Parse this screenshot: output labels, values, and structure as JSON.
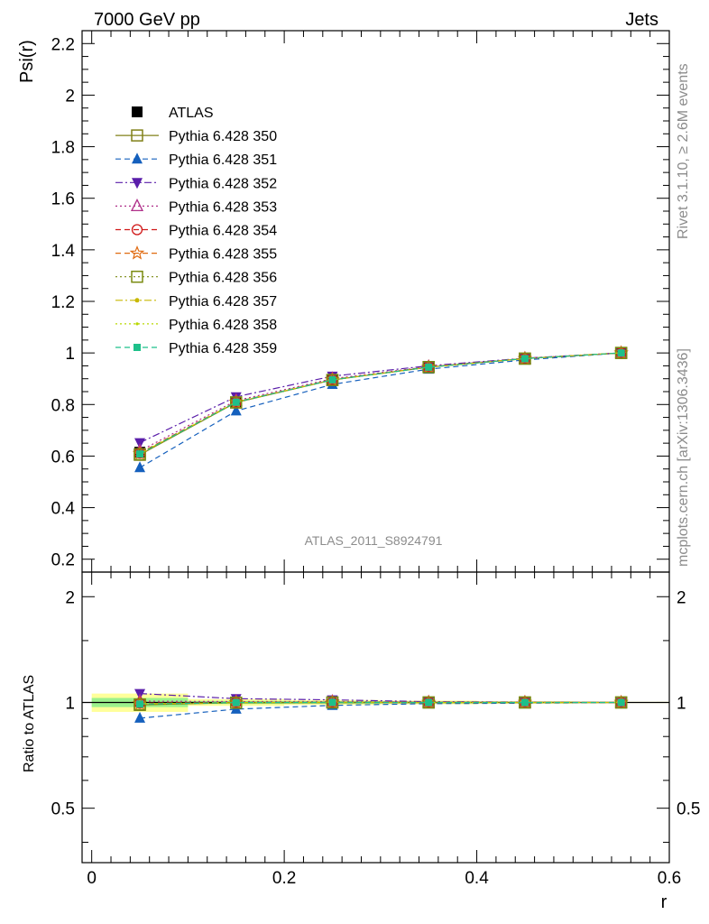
{
  "header": {
    "left": "7000 GeV pp",
    "right": "Jets"
  },
  "side_labels": {
    "rivet": "Rivet 3.1.10, ≥ 2.6M events",
    "mcplots": "mcplots.cern.ch [arXiv:1306.3436]"
  },
  "analysis_id": "ATLAS_2011_S8924791",
  "chart_data": [
    {
      "type": "line",
      "panel": "main",
      "xlabel": "r",
      "ylabel": "Psi(r)",
      "xlim": [
        -0.01,
        0.6
      ],
      "ylim": [
        0.15,
        2.25
      ],
      "x_ticks": [
        0,
        0.2,
        0.4,
        0.6
      ],
      "y_ticks": [
        0.2,
        0.4,
        0.6,
        0.8,
        1,
        1.2,
        1.4,
        1.6,
        1.8,
        2,
        2.2
      ],
      "x": [
        0.05,
        0.15,
        0.25,
        0.35,
        0.45,
        0.55
      ],
      "legend_position": "top-left",
      "series": [
        {
          "name": "ATLAS",
          "color": "#000000",
          "marker": "square-filled",
          "line": "none",
          "values": [
            0.615,
            0.81,
            0.895,
            0.945,
            0.978,
            1.0
          ]
        },
        {
          "name": "Pythia 6.428 350",
          "color": "#808018",
          "marker": "square-open",
          "line": "solid",
          "values": [
            0.605,
            0.808,
            0.895,
            0.945,
            0.978,
            1.0
          ]
        },
        {
          "name": "Pythia 6.428 351",
          "color": "#1560bd",
          "marker": "triangle-up-filled",
          "line": "dashed",
          "values": [
            0.555,
            0.775,
            0.878,
            0.937,
            0.973,
            1.0
          ]
        },
        {
          "name": "Pythia 6.428 352",
          "color": "#5a1eaa",
          "marker": "triangle-down-filled",
          "line": "dashdot",
          "values": [
            0.652,
            0.83,
            0.91,
            0.95,
            0.98,
            1.0
          ]
        },
        {
          "name": "Pythia 6.428 353",
          "color": "#b0308a",
          "marker": "triangle-up-open",
          "line": "dotted",
          "values": [
            0.62,
            0.815,
            0.9,
            0.947,
            0.979,
            1.0
          ]
        },
        {
          "name": "Pythia 6.428 354",
          "color": "#d01818",
          "marker": "circle-open",
          "line": "dashed",
          "values": [
            0.612,
            0.81,
            0.897,
            0.946,
            0.978,
            1.0
          ]
        },
        {
          "name": "Pythia 6.428 355",
          "color": "#e06a10",
          "marker": "star-open",
          "line": "dashed",
          "values": [
            0.61,
            0.809,
            0.896,
            0.945,
            0.978,
            1.0
          ]
        },
        {
          "name": "Pythia 6.428 356",
          "color": "#7a8a10",
          "marker": "square-open",
          "line": "dotted",
          "values": [
            0.607,
            0.808,
            0.895,
            0.945,
            0.978,
            1.0
          ]
        },
        {
          "name": "Pythia 6.428 357",
          "color": "#c8b800",
          "marker": "dot",
          "line": "dashdot",
          "values": [
            0.609,
            0.809,
            0.896,
            0.945,
            0.978,
            1.0
          ]
        },
        {
          "name": "Pythia 6.428 358",
          "color": "#b8d800",
          "marker": "dot-small",
          "line": "dotted",
          "values": [
            0.61,
            0.81,
            0.896,
            0.945,
            0.978,
            1.0
          ]
        },
        {
          "name": "Pythia 6.428 359",
          "color": "#1ec08a",
          "marker": "square-filled-small",
          "line": "dashed",
          "values": [
            0.608,
            0.809,
            0.896,
            0.945,
            0.978,
            1.0
          ]
        }
      ]
    },
    {
      "type": "line",
      "panel": "ratio",
      "xlabel": "r",
      "ylabel": "Ratio to ATLAS",
      "xlim": [
        -0.01,
        0.6
      ],
      "ylim": [
        0.35,
        2.35
      ],
      "y_scale": "log",
      "y_ticks": [
        0.5,
        1,
        2
      ],
      "x": [
        0.05,
        0.15,
        0.25,
        0.35,
        0.45,
        0.55
      ],
      "reference_bands": {
        "green_halfwidth": [
          0.03,
          0.01,
          0.008,
          0.006,
          0.004,
          0.002
        ],
        "yellow_halfwidth": [
          0.06,
          0.022,
          0.016,
          0.012,
          0.008,
          0.004
        ]
      },
      "series": [
        {
          "name": "Pythia 6.428 350",
          "values": [
            0.984,
            0.998,
            1.0,
            1.0,
            1.0,
            1.0
          ]
        },
        {
          "name": "Pythia 6.428 351",
          "values": [
            0.902,
            0.957,
            0.981,
            0.992,
            0.995,
            1.0
          ]
        },
        {
          "name": "Pythia 6.428 352",
          "values": [
            1.06,
            1.025,
            1.017,
            1.005,
            1.002,
            1.0
          ]
        },
        {
          "name": "Pythia 6.428 353",
          "values": [
            1.008,
            1.006,
            1.006,
            1.002,
            1.001,
            1.0
          ]
        },
        {
          "name": "Pythia 6.428 354",
          "values": [
            0.995,
            1.0,
            1.002,
            1.001,
            1.0,
            1.0
          ]
        },
        {
          "name": "Pythia 6.428 355",
          "values": [
            0.992,
            0.999,
            1.001,
            1.0,
            1.0,
            1.0
          ]
        },
        {
          "name": "Pythia 6.428 356",
          "values": [
            0.987,
            0.998,
            1.0,
            1.0,
            1.0,
            1.0
          ]
        },
        {
          "name": "Pythia 6.428 357",
          "values": [
            0.99,
            0.999,
            1.001,
            1.0,
            1.0,
            1.0
          ]
        },
        {
          "name": "Pythia 6.428 358",
          "values": [
            0.992,
            1.0,
            1.001,
            1.0,
            1.0,
            1.0
          ]
        },
        {
          "name": "Pythia 6.428 359",
          "values": [
            0.989,
            0.999,
            1.001,
            1.0,
            1.0,
            1.0
          ]
        }
      ]
    }
  ]
}
